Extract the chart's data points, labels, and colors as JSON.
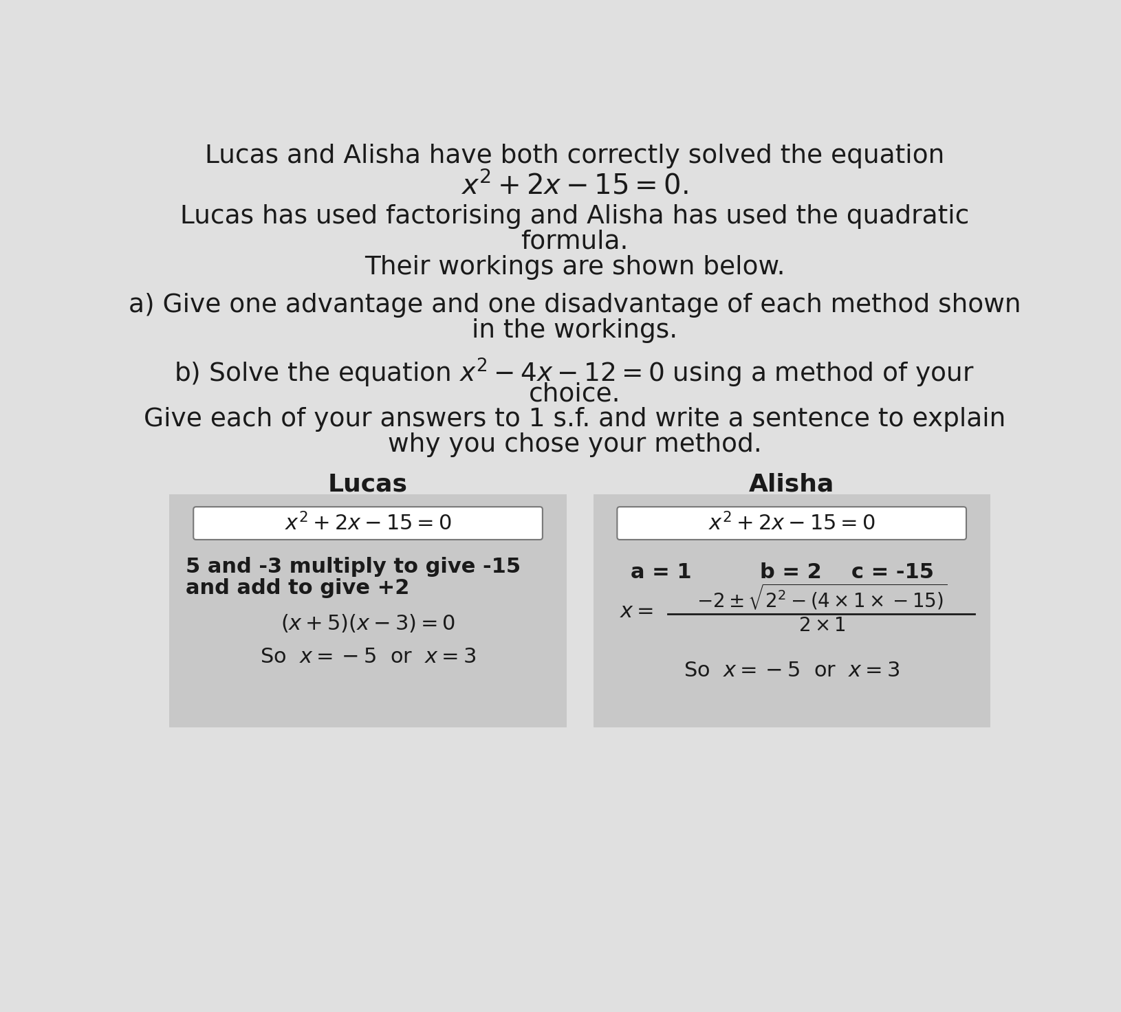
{
  "bg_color": "#e0e0e0",
  "text_color": "#1a1a1a",
  "panel_bg_color": "#c8c8c8",
  "box_border_color": "#888888",
  "header_text": "Lucas and Alisha have both correctly solved the equation",
  "equation_main": "$x^2 + 2x - 15 = 0.$",
  "subheader1": "Lucas has used factorising and Alisha has used the quadratic",
  "subheader2": "formula.",
  "subheader3": "Their workings are shown below.",
  "part_a1": "a) Give one advantage and one disadvantage of each method shown",
  "part_a2": "in the workings.",
  "part_b1": "b) Solve the equation $x^2 - 4x - 12 = 0$ using a method of your",
  "part_b2": "choice.",
  "part_b3": "Give each of your answers to 1 s.f. and write a sentence to explain",
  "part_b4": "why you chose your method.",
  "lucas_label": "Lucas",
  "alisha_label": "Alisha",
  "lucas_eq_box": "$x^2 + 2x - 15 = 0$",
  "alisha_eq_box": "$x^2 + 2x - 15 = 0$",
  "lucas_step1a": "5 and -3 multiply to give -15",
  "lucas_step1b": "and add to give +2",
  "lucas_step2": "$(x + 5)(x - 3) = 0$",
  "lucas_answer": "So  $x = -5$  or  $x = 3$",
  "alisha_abc": "a = 1     b = 2     c = -15",
  "alisha_answer": "So  $x = -5$  or  $x = 3$"
}
